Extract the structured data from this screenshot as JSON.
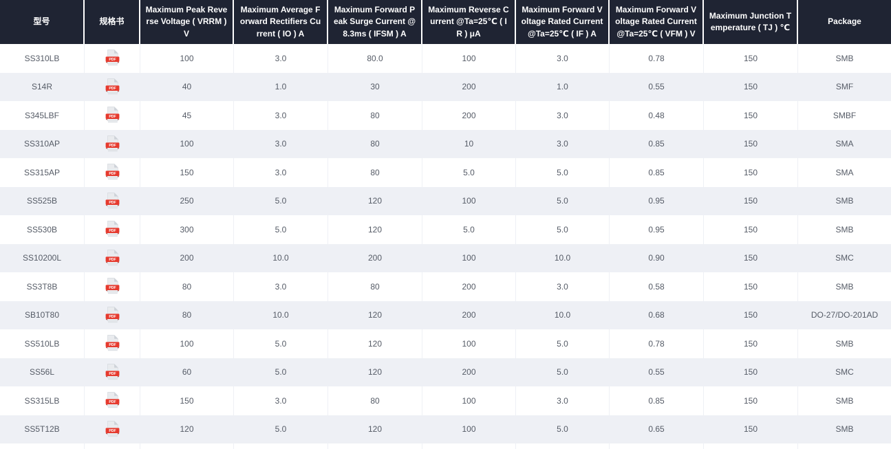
{
  "table": {
    "columns": [
      {
        "key": "model",
        "label": "型号"
      },
      {
        "key": "datasheet",
        "label": "规格书"
      },
      {
        "key": "vrrm",
        "label": "Maximum Peak Reverse Voltage ( VRRM ) V"
      },
      {
        "key": "io",
        "label": "Maximum Average Forward Rectifiers Current ( IO ) A"
      },
      {
        "key": "ifsm",
        "label": "Maximum Forward Peak Surge Current @8.3ms ( IFSM ) A"
      },
      {
        "key": "ir",
        "label": "Maximum Reverse Current @Ta=25℃ ( IR ) μA"
      },
      {
        "key": "if",
        "label": "Maximum Forward Voltage Rated Current @Ta=25℃ ( IF ) A"
      },
      {
        "key": "vfm",
        "label": "Maximum Forward Voltage Rated Current @Ta=25℃ ( VFM ) V"
      },
      {
        "key": "tj",
        "label": "Maximum Junction Temperature ( TJ ) ℃"
      },
      {
        "key": "package",
        "label": "Package"
      }
    ],
    "pdf_icon": {
      "label": "PDF"
    },
    "rows": [
      {
        "model": "SS310LB",
        "vrrm": "100",
        "io": "3.0",
        "ifsm": "80.0",
        "ir": "100",
        "if": "3.0",
        "vfm": "0.78",
        "tj": "150",
        "package": "SMB"
      },
      {
        "model": "S14R",
        "vrrm": "40",
        "io": "1.0",
        "ifsm": "30",
        "ir": "200",
        "if": "1.0",
        "vfm": "0.55",
        "tj": "150",
        "package": "SMF"
      },
      {
        "model": "S345LBF",
        "vrrm": "45",
        "io": "3.0",
        "ifsm": "80",
        "ir": "200",
        "if": "3.0",
        "vfm": "0.48",
        "tj": "150",
        "package": "SMBF"
      },
      {
        "model": "SS310AP",
        "vrrm": "100",
        "io": "3.0",
        "ifsm": "80",
        "ir": "10",
        "if": "3.0",
        "vfm": "0.85",
        "tj": "150",
        "package": "SMA"
      },
      {
        "model": "SS315AP",
        "vrrm": "150",
        "io": "3.0",
        "ifsm": "80",
        "ir": "5.0",
        "if": "5.0",
        "vfm": "0.85",
        "tj": "150",
        "package": "SMA"
      },
      {
        "model": "SS525B",
        "vrrm": "250",
        "io": "5.0",
        "ifsm": "120",
        "ir": "100",
        "if": "5.0",
        "vfm": "0.95",
        "tj": "150",
        "package": "SMB"
      },
      {
        "model": "SS530B",
        "vrrm": "300",
        "io": "5.0",
        "ifsm": "120",
        "ir": "5.0",
        "if": "5.0",
        "vfm": "0.95",
        "tj": "150",
        "package": "SMB"
      },
      {
        "model": "SS10200L",
        "vrrm": "200",
        "io": "10.0",
        "ifsm": "200",
        "ir": "100",
        "if": "10.0",
        "vfm": "0.90",
        "tj": "150",
        "package": "SMC"
      },
      {
        "model": "SS3T8B",
        "vrrm": "80",
        "io": "3.0",
        "ifsm": "80",
        "ir": "200",
        "if": "3.0",
        "vfm": "0.58",
        "tj": "150",
        "package": "SMB"
      },
      {
        "model": "SB10T80",
        "vrrm": "80",
        "io": "10.0",
        "ifsm": "120",
        "ir": "200",
        "if": "10.0",
        "vfm": "0.68",
        "tj": "150",
        "package": "DO-27/DO-201AD"
      },
      {
        "model": "SS510LB",
        "vrrm": "100",
        "io": "5.0",
        "ifsm": "120",
        "ir": "100",
        "if": "5.0",
        "vfm": "0.78",
        "tj": "150",
        "package": "SMB"
      },
      {
        "model": "SS56L",
        "vrrm": "60",
        "io": "5.0",
        "ifsm": "120",
        "ir": "200",
        "if": "5.0",
        "vfm": "0.55",
        "tj": "150",
        "package": "SMC"
      },
      {
        "model": "SS315LB",
        "vrrm": "150",
        "io": "3.0",
        "ifsm": "80",
        "ir": "100",
        "if": "3.0",
        "vfm": "0.85",
        "tj": "150",
        "package": "SMB"
      },
      {
        "model": "SS5T12B",
        "vrrm": "120",
        "io": "5.0",
        "ifsm": "120",
        "ir": "100",
        "if": "5.0",
        "vfm": "0.65",
        "tj": "150",
        "package": "SMB"
      }
    ],
    "colors": {
      "header_bg": "#1f2433",
      "header_text": "#ffffff",
      "row_bg": "#ffffff",
      "row_alt_bg": "#eef0f5",
      "cell_text": "#555b66",
      "pdf_red": "#e63a2e"
    }
  }
}
